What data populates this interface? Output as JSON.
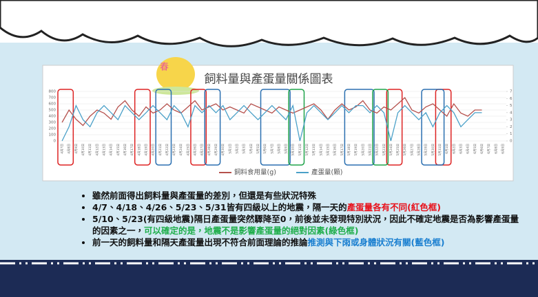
{
  "badge": "春",
  "chart_data": {
    "type": "line",
    "title": "飼料量與產蛋量關係圖表",
    "categories": [
      "4月7日",
      "4月8日",
      "4月9日",
      "4月10日",
      "4月11日",
      "4月12日",
      "4月13日",
      "4月14日",
      "4月15日",
      "4月16日",
      "4月17日",
      "4月18日",
      "4月19日",
      "4月20日",
      "4月21日",
      "4月22日",
      "4月23日",
      "4月24日",
      "4月25日",
      "4月26日",
      "4月27日",
      "4月28日",
      "4月29日",
      "4月30日",
      "5月1日",
      "5月2日",
      "5月3日",
      "5月4日",
      "5月5日",
      "5月6日",
      "5月7日",
      "5月8日",
      "5月9日",
      "5月10日",
      "5月11日",
      "5月12日",
      "5月13日",
      "5月14日",
      "5月15日",
      "5月16日",
      "5月17日",
      "5月18日",
      "5月19日",
      "5月20日",
      "5月21日",
      "5月22日",
      "5月23日",
      "5月24日",
      "5月25日",
      "5月26日",
      "5月27日",
      "5月28日",
      "5月29日",
      "5月30日",
      "5月31日",
      "6月1日",
      "6月2日",
      "6月3日",
      "6月4日",
      "6月5日",
      "6月6日",
      "6月7日",
      "6月8日",
      "6月9日"
    ],
    "series": [
      {
        "name": "飼料食用量(g)",
        "color": "#b5504c",
        "axis": "y",
        "values": [
          300,
          500,
          350,
          250,
          400,
          500,
          450,
          350,
          550,
          650,
          500,
          400,
          550,
          450,
          500,
          600,
          500,
          450,
          550,
          650,
          500,
          550,
          600,
          500,
          550,
          500,
          450,
          600,
          550,
          500,
          450,
          550,
          500,
          450,
          500,
          550,
          600,
          500,
          350,
          500,
          600,
          500,
          550,
          650,
          500,
          450,
          550,
          500,
          600,
          700,
          500,
          450,
          550,
          600,
          500,
          400,
          600,
          450,
          400,
          500,
          500,
          null,
          null,
          null
        ]
      },
      {
        "name": "產蛋量(顆)",
        "color": "#4aa0c8",
        "axis": "y2",
        "values": [
          0,
          2,
          5,
          3,
          2,
          4,
          5,
          4,
          3,
          5,
          4,
          3,
          4,
          5,
          4,
          3,
          5,
          4,
          2,
          5,
          4,
          5,
          4,
          5,
          3,
          4,
          5,
          4,
          3,
          4,
          5,
          4,
          3,
          5,
          0,
          4,
          5,
          4,
          3,
          4,
          5,
          4,
          5,
          5,
          4,
          5,
          4,
          0,
          4,
          5,
          4,
          3,
          4,
          2,
          4,
          5,
          4,
          2,
          3,
          4,
          4,
          null,
          null,
          null
        ]
      }
    ],
    "ylim": [
      0,
      800
    ],
    "yticks": [
      0,
      100,
      200,
      300,
      400,
      500,
      600,
      700,
      800
    ],
    "y2lim": [
      0,
      7
    ],
    "y2ticks": [
      0,
      1,
      2,
      3,
      4,
      5,
      6,
      7
    ],
    "legend": "bottom"
  },
  "bullets": [
    [
      {
        "text": "雖然前面得出飼料量與產蛋量的差別，但還是有些狀況特殊"
      }
    ],
    [
      {
        "text": "4/7、4/18、4/26、5/23、5/31皆有四級以上的地震，隔一天的"
      },
      {
        "text": "產蛋量各有不同(紅色框)",
        "color": "#e8101a"
      }
    ],
    [
      {
        "text": "5/10、5/23(有四級地震)隔日產蛋量突然驟降至0，前後並未發現特別狀況，因此不確定地震是否為影響產蛋量的因素之一，"
      },
      {
        "text": "可以確定的是，地震不是影響產蛋量的絕對因素(綠色框)",
        "color": "#1fae4b"
      }
    ],
    [
      {
        "text": "前一天的飼料量和隔天產蛋量出現不符合前面理論的推論"
      },
      {
        "text": "推測與下雨或身體狀況有關(藍色框)",
        "color": "#1a7fd0"
      }
    ]
  ]
}
